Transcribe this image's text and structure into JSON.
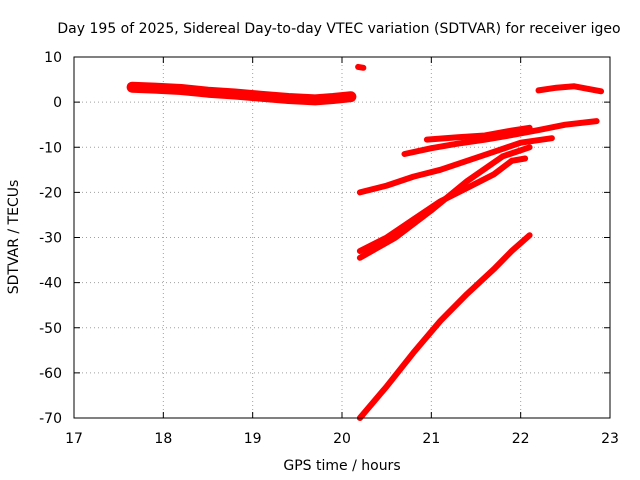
{
  "chart_data": {
    "type": "line",
    "title": "Day 195 of 2025, Sidereal Day-to-day VTEC variation (SDTVAR) for receiver igeo",
    "xlabel": "GPS time / hours",
    "ylabel": "SDTVAR / TECUs",
    "xlim": [
      17,
      23
    ],
    "ylim": [
      -70,
      10
    ],
    "xticks": [
      17,
      18,
      19,
      20,
      21,
      22,
      23
    ],
    "yticks": [
      -70,
      -60,
      -50,
      -40,
      -30,
      -20,
      -10,
      0,
      10
    ],
    "grid": true,
    "color": "#ff0000",
    "series": [
      {
        "x": [
          17.65,
          17.9,
          18.2,
          18.5,
          18.8,
          19.1,
          19.4,
          19.7,
          19.9,
          20.1
        ],
        "y": [
          3.3,
          3.1,
          2.8,
          2.2,
          1.8,
          1.3,
          0.8,
          0.5,
          0.8,
          1.2
        ]
      },
      {
        "x": [
          20.18,
          20.24
        ],
        "y": [
          7.8,
          7.6
        ]
      },
      {
        "x": [
          20.2,
          20.5,
          20.8,
          21.1,
          21.4,
          21.7,
          22.0,
          22.35
        ],
        "y": [
          -20,
          -18.5,
          -16.5,
          -15,
          -13,
          -11,
          -9,
          -8
        ]
      },
      {
        "x": [
          20.2,
          20.5,
          20.8,
          21.1,
          21.4,
          21.7,
          21.9,
          22.05
        ],
        "y": [
          -33,
          -30,
          -26,
          -22,
          -19,
          -16,
          -13,
          -12.5
        ]
      },
      {
        "x": [
          20.2,
          20.6,
          21.0,
          21.4,
          21.8,
          22.1
        ],
        "y": [
          -34.5,
          -30,
          -24,
          -17.5,
          -12,
          -10
        ]
      },
      {
        "x": [
          20.2,
          20.5,
          20.8,
          21.1,
          21.4,
          21.7,
          21.9,
          22.1
        ],
        "y": [
          -70,
          -63,
          -55.5,
          -48.5,
          -42.5,
          -37,
          -33,
          -29.5
        ]
      },
      {
        "x": [
          20.7,
          21.0,
          21.3,
          21.6,
          21.9,
          22.2,
          22.5,
          22.85
        ],
        "y": [
          -11.5,
          -10.2,
          -9.2,
          -8.3,
          -7.3,
          -6.2,
          -5,
          -4.2
        ]
      },
      {
        "x": [
          20.95,
          21.3,
          21.6,
          21.9,
          22.1
        ],
        "y": [
          -8.3,
          -7.8,
          -7.4,
          -6.3,
          -5.7
        ]
      },
      {
        "x": [
          22.2,
          22.4,
          22.6,
          22.9
        ],
        "y": [
          2.6,
          3.2,
          3.5,
          2.4
        ]
      }
    ]
  }
}
